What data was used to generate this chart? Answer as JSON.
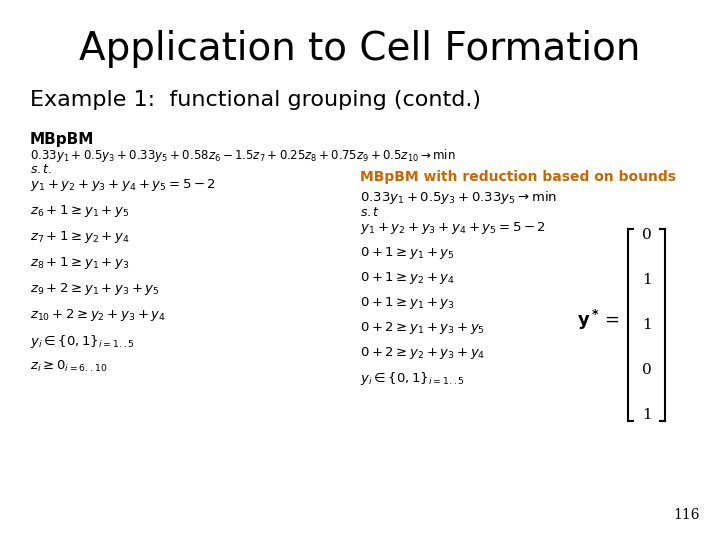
{
  "title": "Application to Cell Formation",
  "subtitle": "Example 1:  functional grouping (contd.)",
  "bg_color": "#ffffff",
  "title_fontsize": 28,
  "subtitle_fontsize": 16,
  "mbpbm_label": "MBpBM",
  "reduction_label": "MBpBM with reduction based on bounds",
  "reduction_color": "#CC6600",
  "page_number": "116",
  "left_equations": [
    "$0.33y_1 + 0.5y_3 + 0.33y_5 + 0.58z_6 - 1.5z_7 + 0.25z_8 + 0.75z_9 + 0.5z_{10} \\rightarrow \\min$",
    "$s.t.$",
    "$y_1 + y_2 + y_3 + y_4 + y_5 = 5 - 2$",
    "$z_6 + 1 \\geq y_1 + y_5$",
    "$z_7 + 1 \\geq y_2 + y_4$",
    "$z_8 + 1 \\geq y_1 + y_3$",
    "$z_9 + 2 \\geq y_1 + y_3 + y_5$",
    "$z_{10} + 2 \\geq y_2 + y_3 + y_4$",
    "$y_i \\in \\{0,1\\}_{i=1..5}$",
    "$z_i \\geq 0_{i=6..10}$"
  ],
  "right_equations": [
    "$0.33y_1 + 0.5y_3 + 0.33y_5 \\rightarrow \\min$",
    "$s.t$",
    "$y_1 + y_2 + y_3 + y_4 + y_5 = 5 - 2$",
    "$0 + 1 \\geq y_1 + y_5$",
    "$0 + 1 \\geq y_2 + y_4$",
    "$0 + 1 \\geq y_1 + y_3$",
    "$0 + 2 \\geq y_1 + y_3 + y_5$",
    "$0 + 2 \\geq y_2 + y_3 + y_4$",
    "$y_i \\in \\{0,1\\}_{i=1..5}$"
  ],
  "ystar_vector": [
    "0",
    "1",
    "1",
    "0",
    "1"
  ]
}
